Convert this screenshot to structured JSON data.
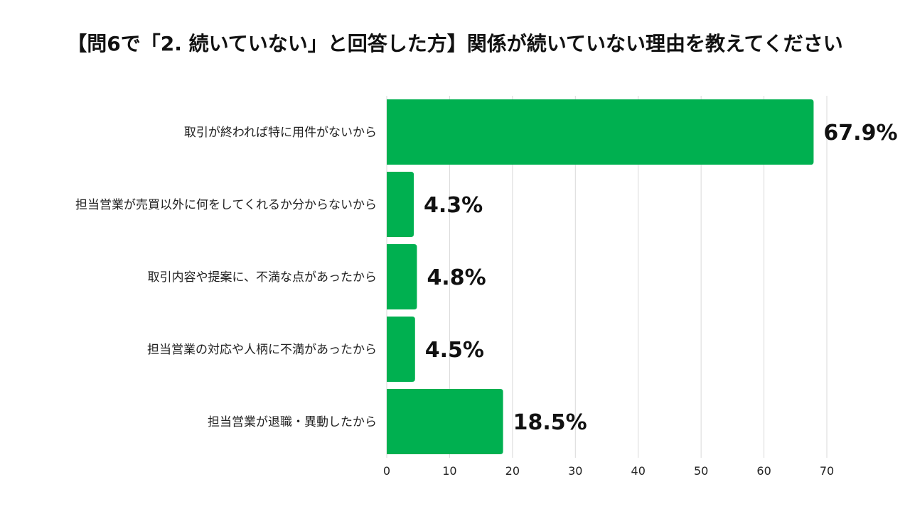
{
  "chart_data": {
    "type": "bar",
    "orientation": "horizontal",
    "title": "【問6で「2. 続いていない」と回答した方】関係が続いていない理由を教えてください",
    "xlabel": "",
    "ylabel": "",
    "xlim": [
      0,
      70
    ],
    "x_ticks": [
      0,
      10,
      20,
      30,
      40,
      50,
      60,
      70
    ],
    "grid": "vertical",
    "legend": "none",
    "categories": [
      "取引が終われば特に用件がないから",
      "担当営業が売買以外に何をしてくれるか分からないから",
      "取引内容や提案に、不満な点があったから",
      "担当営業の対応や人柄に不満があったから",
      "担当営業が退職・異動したから"
    ],
    "values": [
      67.9,
      4.3,
      4.8,
      4.5,
      18.5
    ],
    "data_labels": [
      "67.9%",
      "4.3%",
      "4.8%",
      "4.5%",
      "18.5%"
    ],
    "bar_color": "#00b050",
    "grid_color": "#d9d9d9"
  }
}
